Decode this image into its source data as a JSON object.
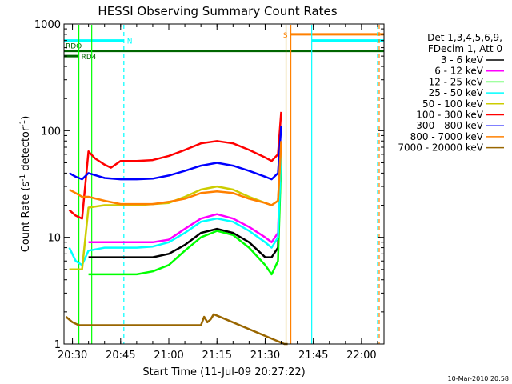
{
  "chart_data": {
    "type": "line",
    "title": "HESSI Observing Summary Count Rates",
    "xlabel": "Start Time (11-Jul-09 20:27:22)",
    "ylabel_main": "Count Rate (s",
    "ylabel_sup1": "-1",
    "ylabel_mid": " detector",
    "ylabel_sup2": "-1",
    "ylabel_end": ")",
    "yscale": "log",
    "ylim": [
      1,
      1000
    ],
    "xlim": [
      "20:27:22",
      "22:07:00"
    ],
    "x_ticks": [
      "20:30",
      "20:45",
      "21:00",
      "21:15",
      "21:30",
      "21:45",
      "22:00"
    ],
    "y_ticks": [
      "1",
      "10",
      "100",
      "1000"
    ],
    "date_stamp": "10-Mar-2010 20:58",
    "legend": {
      "header": [
        "Det 1,3,4,5,6,9,",
        "FDecim 1, Att 0"
      ],
      "entries": [
        {
          "label": "3 - 6 keV",
          "color": "#000000"
        },
        {
          "label": "6 - 12 keV",
          "color": "#ff00ff"
        },
        {
          "label": "12 - 25 keV",
          "color": "#00ff00"
        },
        {
          "label": "25 - 50 keV",
          "color": "#00ffff"
        },
        {
          "label": "50 - 100 keV",
          "color": "#cccc00"
        },
        {
          "label": "100 - 300 keV",
          "color": "#ff0000"
        },
        {
          "label": "300 - 800 keV",
          "color": "#0000ff"
        },
        {
          "label": "800 - 7000 keV",
          "color": "#ff8000"
        },
        {
          "label": "7000 - 20000 keV",
          "color": "#996600"
        }
      ]
    },
    "flags": [
      {
        "label": "N",
        "color": "#00ffff",
        "segments": [
          [
            "20:27:22",
            "20:46:00"
          ],
          [
            "21:44:30",
            "22:07:00"
          ]
        ],
        "level": 700
      },
      {
        "label": "S",
        "color": "#ff8000",
        "segments": [
          [
            "21:38:00",
            "22:07:00"
          ]
        ],
        "level": 800
      },
      {
        "label": "RDO",
        "color": "#006600",
        "segments": [
          [
            "20:27:22",
            "22:07:00"
          ]
        ],
        "level": 560
      },
      {
        "label": "RD4",
        "color": "#006600",
        "segments": [
          [
            "20:27:22",
            "20:32:00"
          ]
        ],
        "level": 500
      }
    ],
    "series": [
      {
        "name": "3 - 6 keV",
        "color": "#000000",
        "x": [
          "20:35",
          "20:40",
          "20:45",
          "20:50",
          "20:55",
          "21:00",
          "21:05",
          "21:10",
          "21:15",
          "21:20",
          "21:25",
          "21:30",
          "21:32",
          "21:34",
          "21:35"
        ],
        "y": [
          6.5,
          6.5,
          6.5,
          6.5,
          6.5,
          7.0,
          8.5,
          11,
          12,
          11,
          9,
          6.5,
          6.5,
          8,
          60
        ]
      },
      {
        "name": "6 - 12 keV",
        "color": "#ff00ff",
        "x": [
          "20:35",
          "20:40",
          "20:45",
          "20:50",
          "20:55",
          "21:00",
          "21:05",
          "21:10",
          "21:15",
          "21:20",
          "21:25",
          "21:30",
          "21:32",
          "21:34",
          "21:35"
        ],
        "y": [
          9,
          9,
          9,
          9,
          9,
          9.5,
          12,
          15,
          16.5,
          15,
          12.5,
          10,
          9,
          11,
          70
        ]
      },
      {
        "name": "12 - 25 keV",
        "color": "#00ff00",
        "x": [
          "20:35",
          "20:40",
          "20:45",
          "20:50",
          "20:55",
          "21:00",
          "21:05",
          "21:10",
          "21:15",
          "21:20",
          "21:25",
          "21:30",
          "21:32",
          "21:34",
          "21:35"
        ],
        "y": [
          4.5,
          4.5,
          4.5,
          4.5,
          4.8,
          5.5,
          7.5,
          10,
          11.5,
          10.5,
          8,
          5.5,
          4.5,
          6,
          55
        ]
      },
      {
        "name": "25 - 50 keV",
        "color": "#00ffff",
        "x": [
          "20:29",
          "20:31",
          "20:33",
          "20:35",
          "20:40",
          "20:45",
          "20:50",
          "20:55",
          "21:00",
          "21:05",
          "21:10",
          "21:15",
          "21:20",
          "21:25",
          "21:30",
          "21:32",
          "21:34",
          "21:35"
        ],
        "y": [
          8,
          6,
          5.5,
          7.5,
          8,
          8,
          8,
          8.2,
          9,
          11,
          14,
          15,
          14,
          11.5,
          9,
          8,
          10,
          65
        ]
      },
      {
        "name": "50 - 100 keV",
        "color": "#cccc00",
        "x": [
          "20:29",
          "20:31",
          "20:33",
          "20:35",
          "20:40",
          "20:45",
          "20:50",
          "20:55",
          "21:00",
          "21:05",
          "21:10",
          "21:15",
          "21:20",
          "21:25",
          "21:30",
          "21:32",
          "21:34",
          "21:35"
        ],
        "y": [
          5,
          5,
          5,
          19,
          20,
          20,
          20,
          20.5,
          21,
          24,
          28,
          30,
          28,
          24,
          21,
          20,
          22,
          75
        ]
      },
      {
        "name": "100 - 300 keV",
        "color": "#ff0000",
        "x": [
          "20:29",
          "20:31",
          "20:33",
          "20:35",
          "20:37",
          "20:40",
          "20:42",
          "20:45",
          "20:50",
          "20:55",
          "21:00",
          "21:05",
          "21:10",
          "21:15",
          "21:20",
          "21:25",
          "21:30",
          "21:32",
          "21:34",
          "21:35"
        ],
        "y": [
          18,
          16,
          15,
          64,
          55,
          48,
          45,
          52,
          52,
          53,
          58,
          66,
          76,
          80,
          76,
          66,
          56,
          52,
          60,
          150
        ]
      },
      {
        "name": "300 - 800 keV",
        "color": "#0000ff",
        "x": [
          "20:29",
          "20:31",
          "20:33",
          "20:35",
          "20:40",
          "20:45",
          "20:50",
          "20:55",
          "21:00",
          "21:05",
          "21:10",
          "21:15",
          "21:20",
          "21:25",
          "21:30",
          "21:32",
          "21:34",
          "21:35"
        ],
        "y": [
          40,
          37,
          35,
          40,
          36,
          35,
          35,
          35.5,
          38,
          42,
          47,
          50,
          47,
          42,
          37,
          35,
          40,
          110
        ]
      },
      {
        "name": "800 - 7000 keV",
        "color": "#ff8000",
        "x": [
          "20:29",
          "20:31",
          "20:33",
          "20:35",
          "20:40",
          "20:45",
          "20:50",
          "20:55",
          "21:00",
          "21:05",
          "21:10",
          "21:15",
          "21:20",
          "21:25",
          "21:30",
          "21:32",
          "21:34",
          "21:35"
        ],
        "y": [
          28,
          26,
          24,
          24,
          22,
          20.5,
          20.5,
          20.5,
          21.5,
          23,
          26,
          27,
          26,
          23,
          21,
          20,
          22,
          80
        ]
      },
      {
        "name": "7000 - 20000 keV",
        "color": "#996600",
        "x": [
          "20:28",
          "20:30",
          "20:32",
          "21:10",
          "21:11",
          "21:12",
          "21:13",
          "21:14",
          "21:36",
          "21:37"
        ],
        "y": [
          1.8,
          1.6,
          1.5,
          1.5,
          1.8,
          1.6,
          1.7,
          1.9,
          1,
          1
        ]
      }
    ],
    "vertical_markers": [
      {
        "time": "20:46:00",
        "color": "#00ffff",
        "style": "dashed"
      },
      {
        "time": "20:36:00",
        "color": "#00ff00",
        "style": "solid"
      },
      {
        "time": "20:32:00",
        "color": "#00ff00",
        "style": "solid"
      },
      {
        "time": "21:36:30",
        "color": "#cc9900",
        "style": "solid"
      },
      {
        "time": "21:38:00",
        "color": "#ff8000",
        "style": "solid"
      },
      {
        "time": "21:44:30",
        "color": "#00ffff",
        "style": "solid"
      },
      {
        "time": "22:05:00",
        "color": "#00ffff",
        "style": "dashed"
      },
      {
        "time": "22:05:30",
        "color": "#ff8000",
        "style": "dashed"
      }
    ]
  }
}
